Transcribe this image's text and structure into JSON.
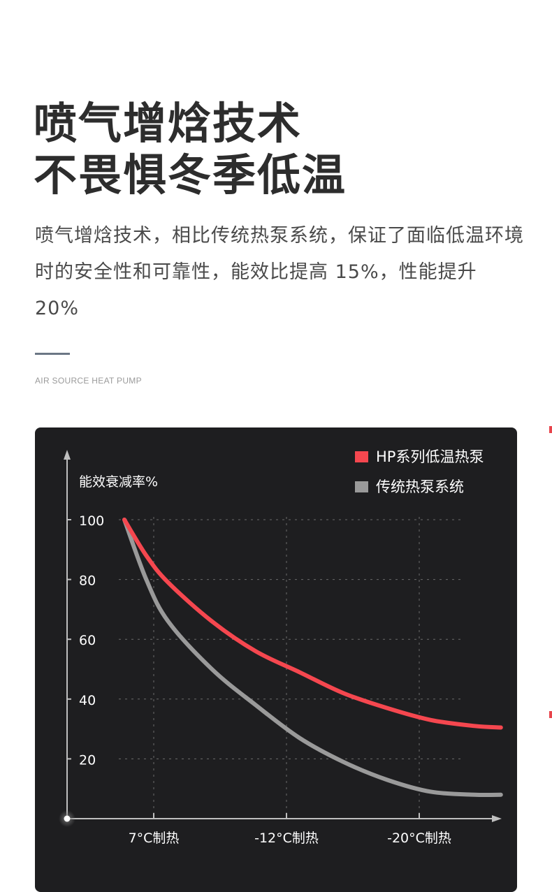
{
  "headline": {
    "line1": "喷气增焓技术",
    "line2": "不畏惧冬季低温"
  },
  "description": "喷气增焓技术，相比传统热泵系统，保证了面临低温环境时的安全性和可靠性，能效比提高 15%，性能提升 20%",
  "caption": "AIR SOURCE HEAT PUMP",
  "colors": {
    "accent_red": "#f5474f",
    "gray_series": "#9a9a9a",
    "panel_bg": "#1e1e20",
    "divider": "#6b7785"
  },
  "chart_data": {
    "type": "line",
    "ylabel": "能效衰减率%",
    "xlabel": "",
    "ylim": [
      0,
      100
    ],
    "yticks": [
      20,
      40,
      60,
      80,
      100
    ],
    "categories": [
      "7°C制热",
      "-12°C制热",
      "-20°C制热"
    ],
    "grid": true,
    "legend_position": "top-right",
    "series": [
      {
        "name": "HP系列低温热泵",
        "color": "#f5474f",
        "points": [
          {
            "x": 0,
            "y": 100
          },
          {
            "x": 0.25,
            "y": 88
          },
          {
            "x": 0.5,
            "y": 79
          },
          {
            "x": 1,
            "y": 66
          },
          {
            "x": 1.5,
            "y": 56
          },
          {
            "x": 2,
            "y": 49
          },
          {
            "x": 2.5,
            "y": 42
          },
          {
            "x": 3,
            "y": 37
          },
          {
            "x": 3.5,
            "y": 33
          },
          {
            "x": 4,
            "y": 31
          },
          {
            "x": 4.3,
            "y": 30.5
          }
        ]
      },
      {
        "name": "传统热泵系统",
        "color": "#9a9a9a",
        "points": [
          {
            "x": 0,
            "y": 100
          },
          {
            "x": 0.25,
            "y": 80
          },
          {
            "x": 0.5,
            "y": 66
          },
          {
            "x": 1,
            "y": 50
          },
          {
            "x": 1.5,
            "y": 38
          },
          {
            "x": 2,
            "y": 27
          },
          {
            "x": 2.5,
            "y": 19
          },
          {
            "x": 3,
            "y": 13
          },
          {
            "x": 3.5,
            "y": 9
          },
          {
            "x": 4,
            "y": 8
          },
          {
            "x": 4.3,
            "y": 8
          }
        ]
      }
    ]
  }
}
